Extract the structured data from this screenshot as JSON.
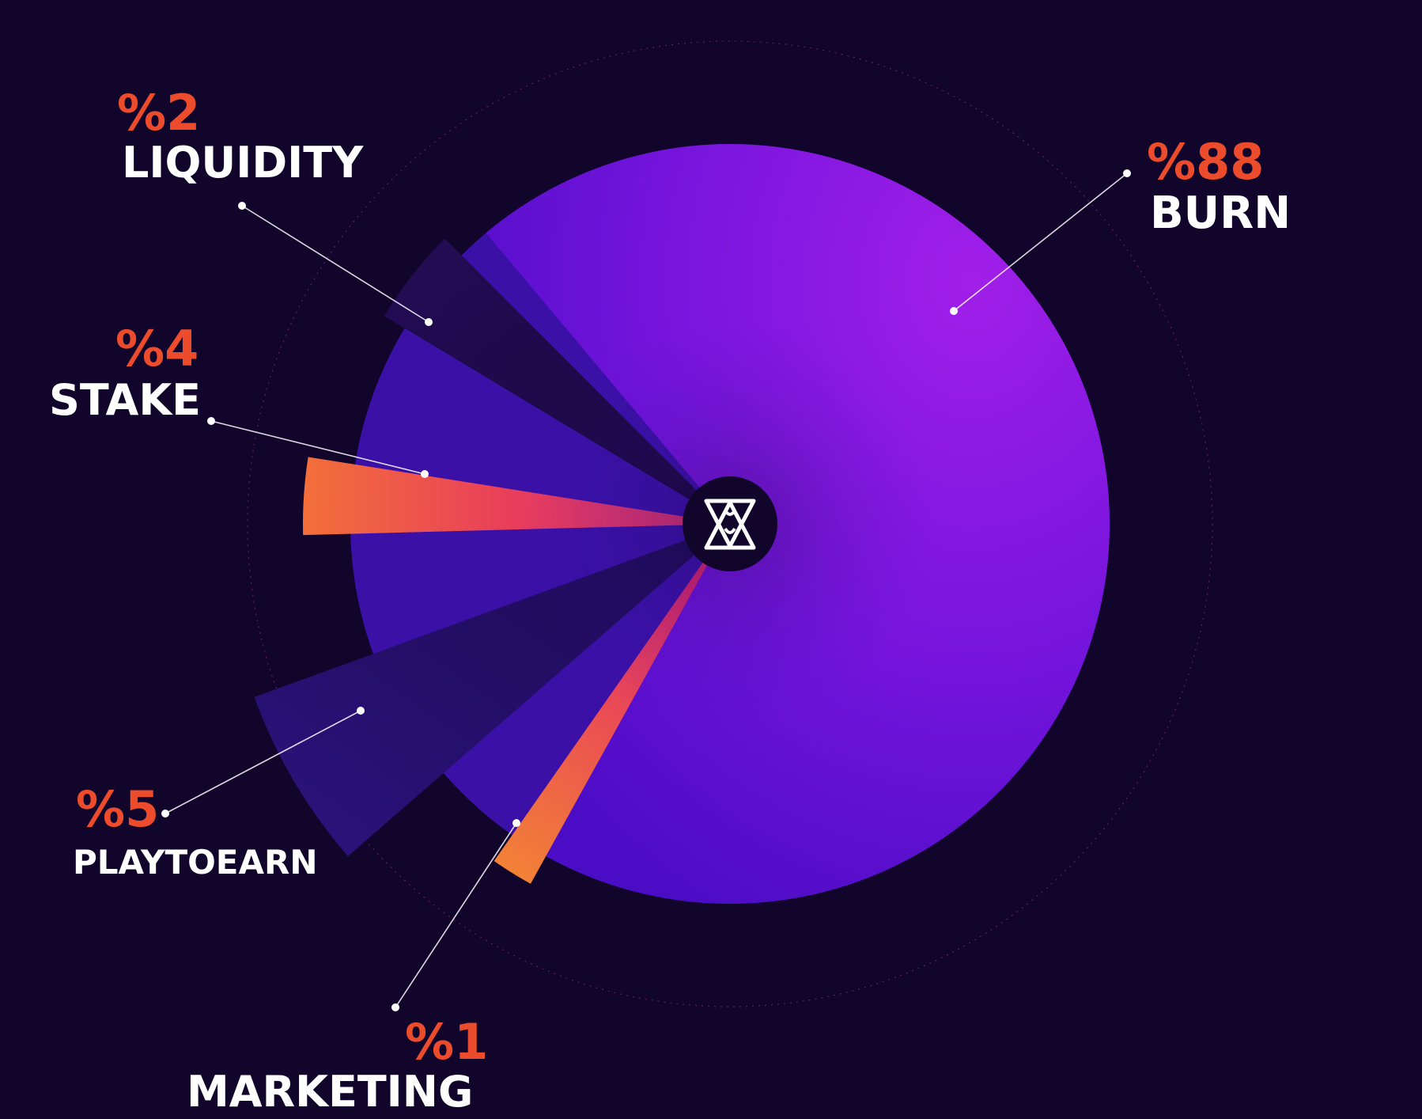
{
  "chart_data": {
    "type": "pie",
    "categories": [
      "BURN",
      "LIQUIDITY",
      "STAKE",
      "PLAYTOEARN",
      "MARKETING"
    ],
    "values": [
      88,
      2,
      4,
      5,
      1
    ],
    "slices": [
      {
        "label": "BURN",
        "percent_label": "%88",
        "value": 88,
        "colors": [
          "#4e0bc4",
          "#9c1ee8"
        ]
      },
      {
        "label": "LIQUIDITY",
        "percent_label": "%2",
        "value": 2,
        "colors": [
          "#1b0942",
          "#1b0942"
        ]
      },
      {
        "label": "STAKE",
        "percent_label": "%4",
        "value": 4,
        "colors": [
          "#d8306e",
          "#f26a3c"
        ]
      },
      {
        "label": "PLAYTOEARN",
        "percent_label": "%5",
        "value": 5,
        "colors": [
          "#241062",
          "#2a117a"
        ]
      },
      {
        "label": "MARKETING",
        "percent_label": "%1",
        "value": 1,
        "colors": [
          "#e63a6a",
          "#f48034"
        ]
      }
    ],
    "center_icon": "logo-icon",
    "legend": "none",
    "grid": false
  }
}
